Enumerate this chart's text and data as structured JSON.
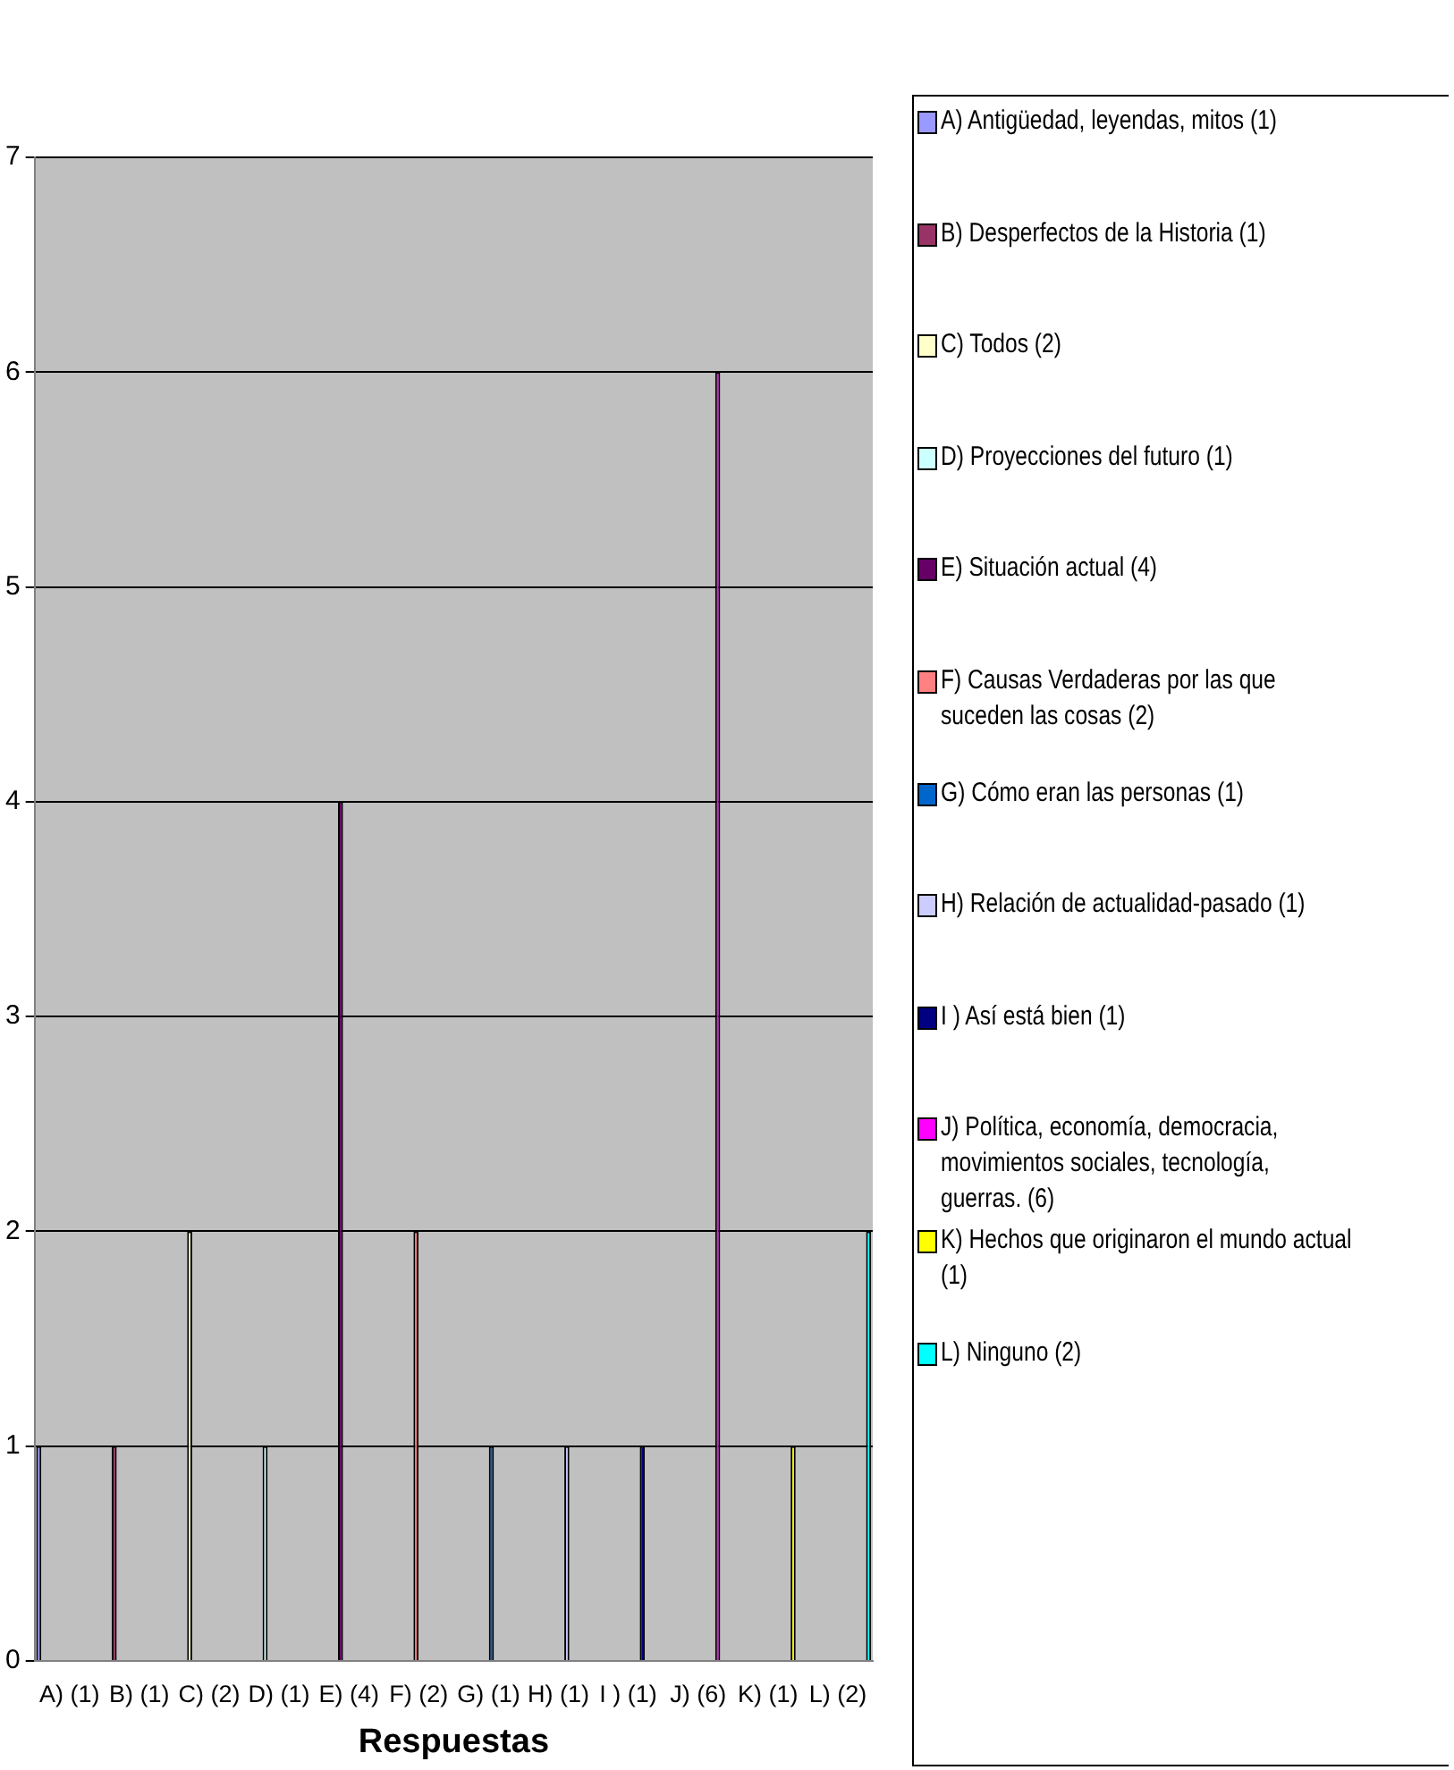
{
  "chart_data": {
    "type": "bar",
    "xlabel": "Respuestas",
    "categories": [
      "A) (1)",
      "B) (1)",
      "C) (2)",
      "D) (1)",
      "E) (4)",
      "F) (2)",
      "G) (1)",
      "H) (1)",
      "I ) (1)",
      "J) (6)",
      "K) (1)",
      "L) (2)"
    ],
    "series": [
      {
        "name": "A) Antigüedad, leyendas, mitos (1)",
        "color": "#9999ff",
        "values": [
          1,
          null,
          null,
          null,
          null,
          null,
          null,
          null,
          null,
          null,
          null,
          null
        ]
      },
      {
        "name": "B) Desperfectos de la Historia (1)",
        "color": "#993366",
        "values": [
          null,
          1,
          null,
          null,
          null,
          null,
          null,
          null,
          null,
          null,
          null,
          null
        ]
      },
      {
        "name": "C) Todos (2)",
        "color": "#ffffcc",
        "values": [
          null,
          null,
          2,
          null,
          null,
          null,
          null,
          null,
          null,
          null,
          null,
          null
        ]
      },
      {
        "name": "D) Proyecciones del futuro (1)",
        "color": "#ccffff",
        "values": [
          null,
          null,
          null,
          1,
          null,
          null,
          null,
          null,
          null,
          null,
          null,
          null
        ]
      },
      {
        "name": "E) Situación actual (4)",
        "color": "#660066",
        "values": [
          null,
          null,
          null,
          null,
          4,
          null,
          null,
          null,
          null,
          null,
          null,
          null
        ]
      },
      {
        "name": "F) Causas Verdaderas por las que suceden las cosas (2)",
        "color": "#ff8080",
        "values": [
          null,
          null,
          null,
          null,
          null,
          2,
          null,
          null,
          null,
          null,
          null,
          null
        ]
      },
      {
        "name": "G) Cómo eran las personas (1)",
        "color": "#0066cc",
        "values": [
          null,
          null,
          null,
          null,
          null,
          null,
          1,
          null,
          null,
          null,
          null,
          null
        ]
      },
      {
        "name": "H) Relación de actualidad-pasado (1)",
        "color": "#ccccff",
        "values": [
          null,
          null,
          null,
          null,
          null,
          null,
          null,
          1,
          null,
          null,
          null,
          null
        ]
      },
      {
        "name": "I ) Así está bien (1)",
        "color": "#000080",
        "values": [
          null,
          null,
          null,
          null,
          null,
          null,
          null,
          null,
          1,
          null,
          null,
          null
        ]
      },
      {
        "name": "J)  Política, economía, democracia, movimientos sociales, tecnología, guerras. (6)",
        "color": "#ff00ff",
        "values": [
          null,
          null,
          null,
          null,
          null,
          null,
          null,
          null,
          null,
          6,
          null,
          null
        ]
      },
      {
        "name": "K) Hechos que originaron el mundo actual (1)",
        "color": "#ffff00",
        "values": [
          null,
          null,
          null,
          null,
          null,
          null,
          null,
          null,
          null,
          null,
          1,
          null
        ]
      },
      {
        "name": "L) Ninguno (2)",
        "color": "#00ffff",
        "values": [
          null,
          null,
          null,
          null,
          null,
          null,
          null,
          null,
          null,
          null,
          null,
          2
        ]
      }
    ],
    "ylim": [
      0,
      7
    ],
    "yticks": [
      0,
      1,
      2,
      3,
      4,
      5,
      6,
      7
    ],
    "grid": "y",
    "legend": "right"
  }
}
